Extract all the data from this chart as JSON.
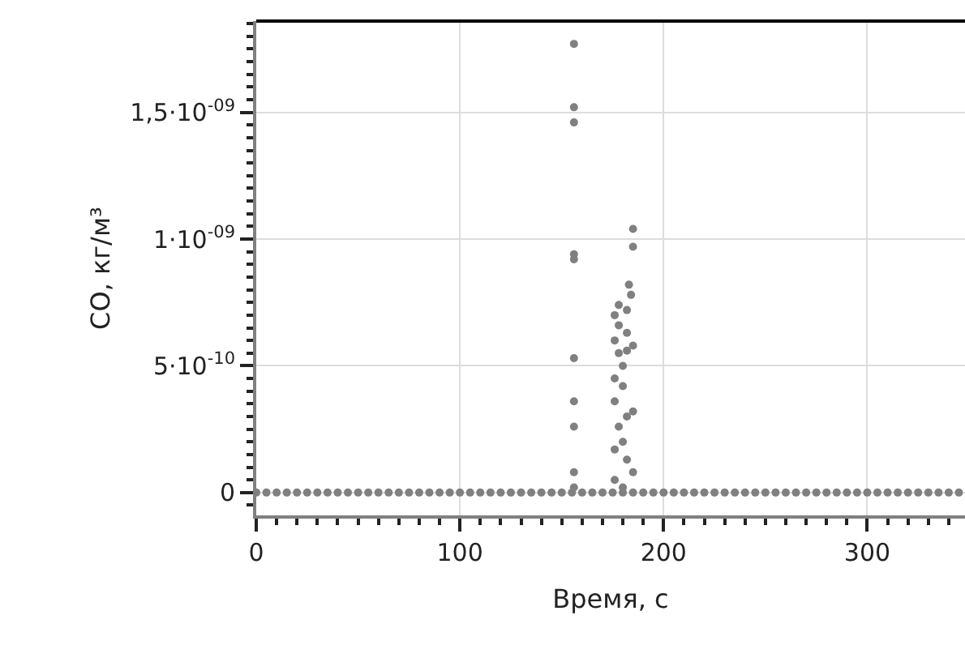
{
  "chart_data": {
    "type": "scatter",
    "xlabel": "Время, с",
    "ylabel": "CO, кг/м³",
    "xlim": [
      0,
      348
    ],
    "xticks": [
      0,
      100,
      200,
      300
    ],
    "ylim": [
      -9e-11,
      1.86e-09
    ],
    "yticks": [
      0,
      {
        "value": 5e-10,
        "label": "5·10$^{-10}$"
      },
      {
        "value": 1e-09,
        "label": "1·10$^{-09}$"
      },
      {
        "value": 1.5e-09,
        "label": "1,5·10$^{-09}$"
      }
    ],
    "grid": true,
    "marker": "circle",
    "series": [
      {
        "color": "#808080",
        "x": [
          0,
          5,
          10,
          15,
          20,
          25,
          30,
          35,
          40,
          45,
          50,
          55,
          60,
          65,
          70,
          75,
          80,
          85,
          90,
          95,
          100,
          105,
          110,
          115,
          120,
          125,
          130,
          135,
          140,
          145,
          150,
          155,
          160,
          165,
          170,
          175,
          180,
          185,
          190,
          195,
          200,
          205,
          210,
          215,
          220,
          225,
          230,
          235,
          240,
          245,
          250,
          255,
          260,
          265,
          270,
          275,
          280,
          285,
          290,
          295,
          300,
          305,
          310,
          315,
          320,
          325,
          330,
          335,
          340,
          345,
          156,
          156,
          156,
          156,
          156,
          156,
          156,
          156,
          156,
          156,
          185,
          185,
          183,
          184,
          178,
          182,
          176,
          178,
          182,
          176,
          185,
          182,
          178,
          180,
          176,
          180,
          176,
          185,
          182,
          178,
          180,
          176,
          182,
          185,
          176,
          180
        ],
        "values": [
          0,
          0,
          0,
          0,
          0,
          0,
          0,
          0,
          0,
          0,
          0,
          0,
          0,
          0,
          0,
          0,
          0,
          0,
          0,
          0,
          0,
          0,
          0,
          0,
          0,
          0,
          0,
          0,
          0,
          0,
          0,
          0,
          0,
          0,
          0,
          0,
          0,
          0,
          0,
          0,
          0,
          0,
          0,
          0,
          0,
          0,
          0,
          0,
          0,
          0,
          0,
          0,
          0,
          0,
          0,
          0,
          0,
          0,
          0,
          0,
          0,
          0,
          0,
          0,
          0,
          0,
          0,
          0,
          0,
          0,
          1.77e-09,
          1.52e-09,
          1.46e-09,
          9.4e-10,
          9.2e-10,
          5.3e-10,
          3.6e-10,
          2.6e-10,
          8e-11,
          2e-11,
          1.04e-09,
          9.7e-10,
          8.2e-10,
          7.8e-10,
          7.4e-10,
          7.2e-10,
          7e-10,
          6.6e-10,
          6.3e-10,
          6e-10,
          5.8e-10,
          5.6e-10,
          5.5e-10,
          5e-10,
          4.5e-10,
          4.2e-10,
          3.6e-10,
          3.2e-10,
          3e-10,
          2.6e-10,
          2e-10,
          1.7e-10,
          1.3e-10,
          8e-11,
          5e-11,
          2e-11
        ]
      }
    ]
  }
}
